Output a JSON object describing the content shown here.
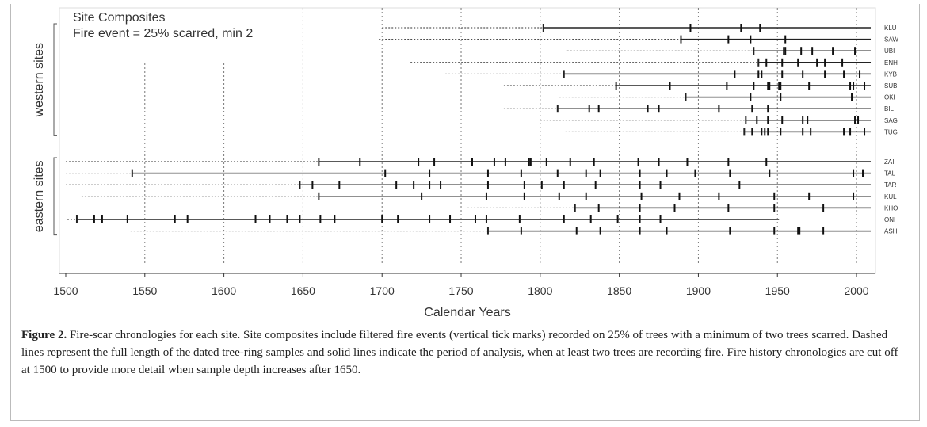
{
  "chart_data": {
    "type": "fire-chart",
    "text_box": [
      "Site Composites",
      "Fire event = 25% scarred, min 2"
    ],
    "xlabel": "Calendar Years",
    "xlim": [
      1496,
      2012
    ],
    "xticks": [
      1500,
      1550,
      1600,
      1650,
      1700,
      1750,
      1800,
      1850,
      1900,
      1950,
      2000
    ],
    "grid": true,
    "groups": [
      {
        "label": "western sites",
        "sites": [
          {
            "name": "KLU",
            "sample_start": 1700,
            "record_start": 1802,
            "end": 2009,
            "fires": [
              1895,
              1927,
              1939
            ]
          },
          {
            "name": "SAW",
            "sample_start": 1698,
            "record_start": 1889,
            "end": 2009,
            "fires": [
              1919,
              1933,
              1955
            ]
          },
          {
            "name": "UBI",
            "sample_start": 1817,
            "record_start": 1935,
            "end": 2009,
            "fires": [
              1954,
              1955,
              1965,
              1972,
              1985,
              1999
            ]
          },
          {
            "name": "ENH",
            "sample_start": 1718,
            "record_start": 1938,
            "end": 2009,
            "fires": [
              1943,
              1953,
              1963,
              1975,
              1980,
              1991
            ]
          },
          {
            "name": "KYB",
            "sample_start": 1740,
            "record_start": 1815,
            "end": 2009,
            "fires": [
              1923,
              1938,
              1940,
              1953,
              1966,
              1980,
              1992,
              2002
            ]
          },
          {
            "name": "SUB",
            "sample_start": 1777,
            "record_start": 1848,
            "end": 2009,
            "fires": [
              1882,
              1918,
              1935,
              1944,
              1945,
              1951,
              1952,
              1970,
              1996,
              1998,
              2005
            ]
          },
          {
            "name": "OKI",
            "sample_start": 1812,
            "record_start": 1892,
            "end": 2009,
            "fires": [
              1933,
              1952,
              1997
            ]
          },
          {
            "name": "BIL",
            "sample_start": 1777,
            "record_start": 1811,
            "end": 2009,
            "fires": [
              1831,
              1837,
              1868,
              1875,
              1913,
              1934,
              1944
            ]
          },
          {
            "name": "SAG",
            "sample_start": 1800,
            "record_start": 1930,
            "end": 2009,
            "fires": [
              1937,
              1944,
              1953,
              1966,
              1969,
              1999,
              2001
            ]
          },
          {
            "name": "TUG",
            "sample_start": 1816,
            "record_start": 1929,
            "end": 2009,
            "fires": [
              1934,
              1940,
              1942,
              1944,
              1952,
              1966,
              1971,
              1992,
              1996,
              2005
            ]
          }
        ]
      },
      {
        "label": "eastern sites",
        "sites": [
          {
            "name": "ZAI",
            "sample_start": 1500,
            "record_start": 1660,
            "end": 2009,
            "fires": [
              1686,
              1723,
              1733,
              1757,
              1771,
              1778,
              1793,
              1794,
              1804,
              1819,
              1834,
              1862,
              1875,
              1893,
              1919,
              1943
            ]
          },
          {
            "name": "TAL",
            "sample_start": 1500,
            "record_start": 1542,
            "end": 2009,
            "fires": [
              1702,
              1730,
              1767,
              1788,
              1811,
              1829,
              1838,
              1863,
              1880,
              1898,
              1920,
              1945,
              1998,
              2004
            ]
          },
          {
            "name": "TAR",
            "sample_start": 1500,
            "record_start": 1648,
            "end": 2009,
            "fires": [
              1656,
              1673,
              1709,
              1720,
              1730,
              1737,
              1767,
              1790,
              1801,
              1815,
              1835,
              1863,
              1876,
              1926
            ]
          },
          {
            "name": "KUL",
            "sample_start": 1510,
            "record_start": 1660,
            "end": 2009,
            "fires": [
              1725,
              1766,
              1790,
              1812,
              1829,
              1864,
              1888,
              1913,
              1948,
              1970,
              1998
            ]
          },
          {
            "name": "KHO",
            "sample_start": 1754,
            "record_start": 1822,
            "end": 2009,
            "fires": [
              1837,
              1863,
              1885,
              1919,
              1948,
              1979
            ]
          },
          {
            "name": "ONI",
            "sample_start": 1501,
            "record_start": 1507,
            "end": 1951,
            "fires": [
              1518,
              1523,
              1539,
              1569,
              1577,
              1620,
              1629,
              1640,
              1648,
              1661,
              1670,
              1700,
              1710,
              1730,
              1743,
              1759,
              1766,
              1787,
              1815,
              1832,
              1849,
              1863,
              1876
            ]
          },
          {
            "name": "ASH",
            "sample_start": 1541,
            "record_start": 1767,
            "end": 2009,
            "fires": [
              1788,
              1823,
              1838,
              1863,
              1880,
              1920,
              1948,
              1963,
              1964,
              1979
            ]
          }
        ]
      }
    ]
  },
  "caption": {
    "label": "Figure 2.",
    "text": "Fire-scar chronologies for each site. Site composites include filtered fire events (vertical tick marks) recorded on 25% of trees with a minimum of two trees scarred. Dashed lines represent the full length of the dated tree-ring samples and solid lines indicate the period of analysis, when at least two trees are recording fire. Fire history chronologies are cut off at 1500 to provide more detail when sample depth increases after 1650."
  }
}
